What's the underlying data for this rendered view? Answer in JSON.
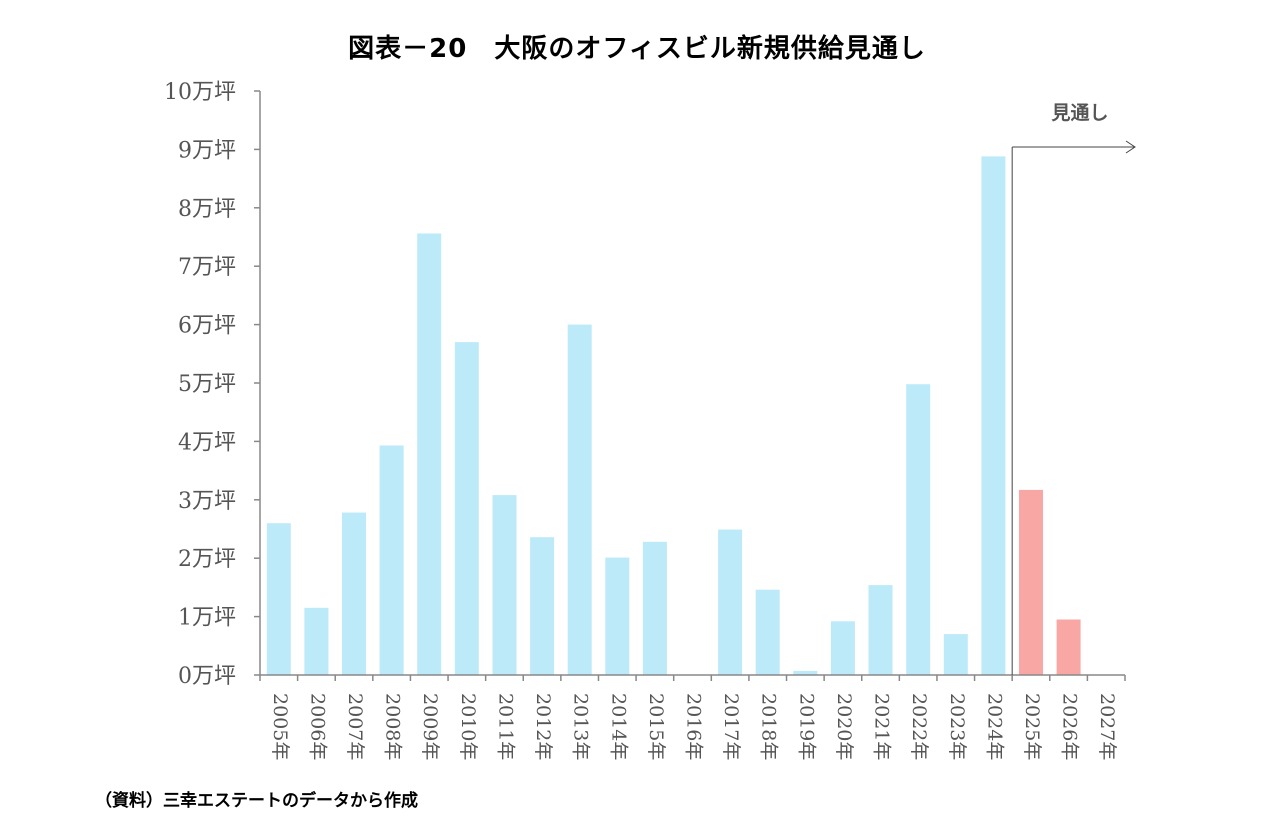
{
  "chart_data": {
    "type": "bar",
    "title": "図表－20　大阪のオフィスビル新規供給見通し",
    "source": "（資料）三幸エステートのデータから作成",
    "ylabel": "",
    "xlabel": "",
    "unit_suffix": "万坪",
    "ylim": [
      0,
      10
    ],
    "ytick_labels": [
      "0万坪",
      "1万坪",
      "2万坪",
      "3万坪",
      "4万坪",
      "5万坪",
      "6万坪",
      "7万坪",
      "8万坪",
      "9万坪",
      "10万坪"
    ],
    "categories": [
      "2005年",
      "2006年",
      "2007年",
      "2008年",
      "2009年",
      "2010年",
      "2011年",
      "2012年",
      "2013年",
      "2014年",
      "2015年",
      "2016年",
      "2017年",
      "2018年",
      "2019年",
      "2020年",
      "2021年",
      "2022年",
      "2023年",
      "2024年",
      "2025年",
      "2026年",
      "2027年"
    ],
    "values": [
      2.6,
      1.15,
      2.78,
      3.93,
      7.56,
      5.7,
      3.08,
      2.36,
      6.0,
      2.01,
      2.28,
      0,
      2.49,
      1.46,
      0.07,
      0.92,
      1.54,
      4.98,
      0.7,
      8.88,
      3.17,
      0.95,
      0
    ],
    "series_colors": {
      "actual": "#bdeaf8",
      "forecast": "#f9a7a4"
    },
    "forecast_start_index": 20,
    "forecast_label": "見通し",
    "grid": false
  }
}
